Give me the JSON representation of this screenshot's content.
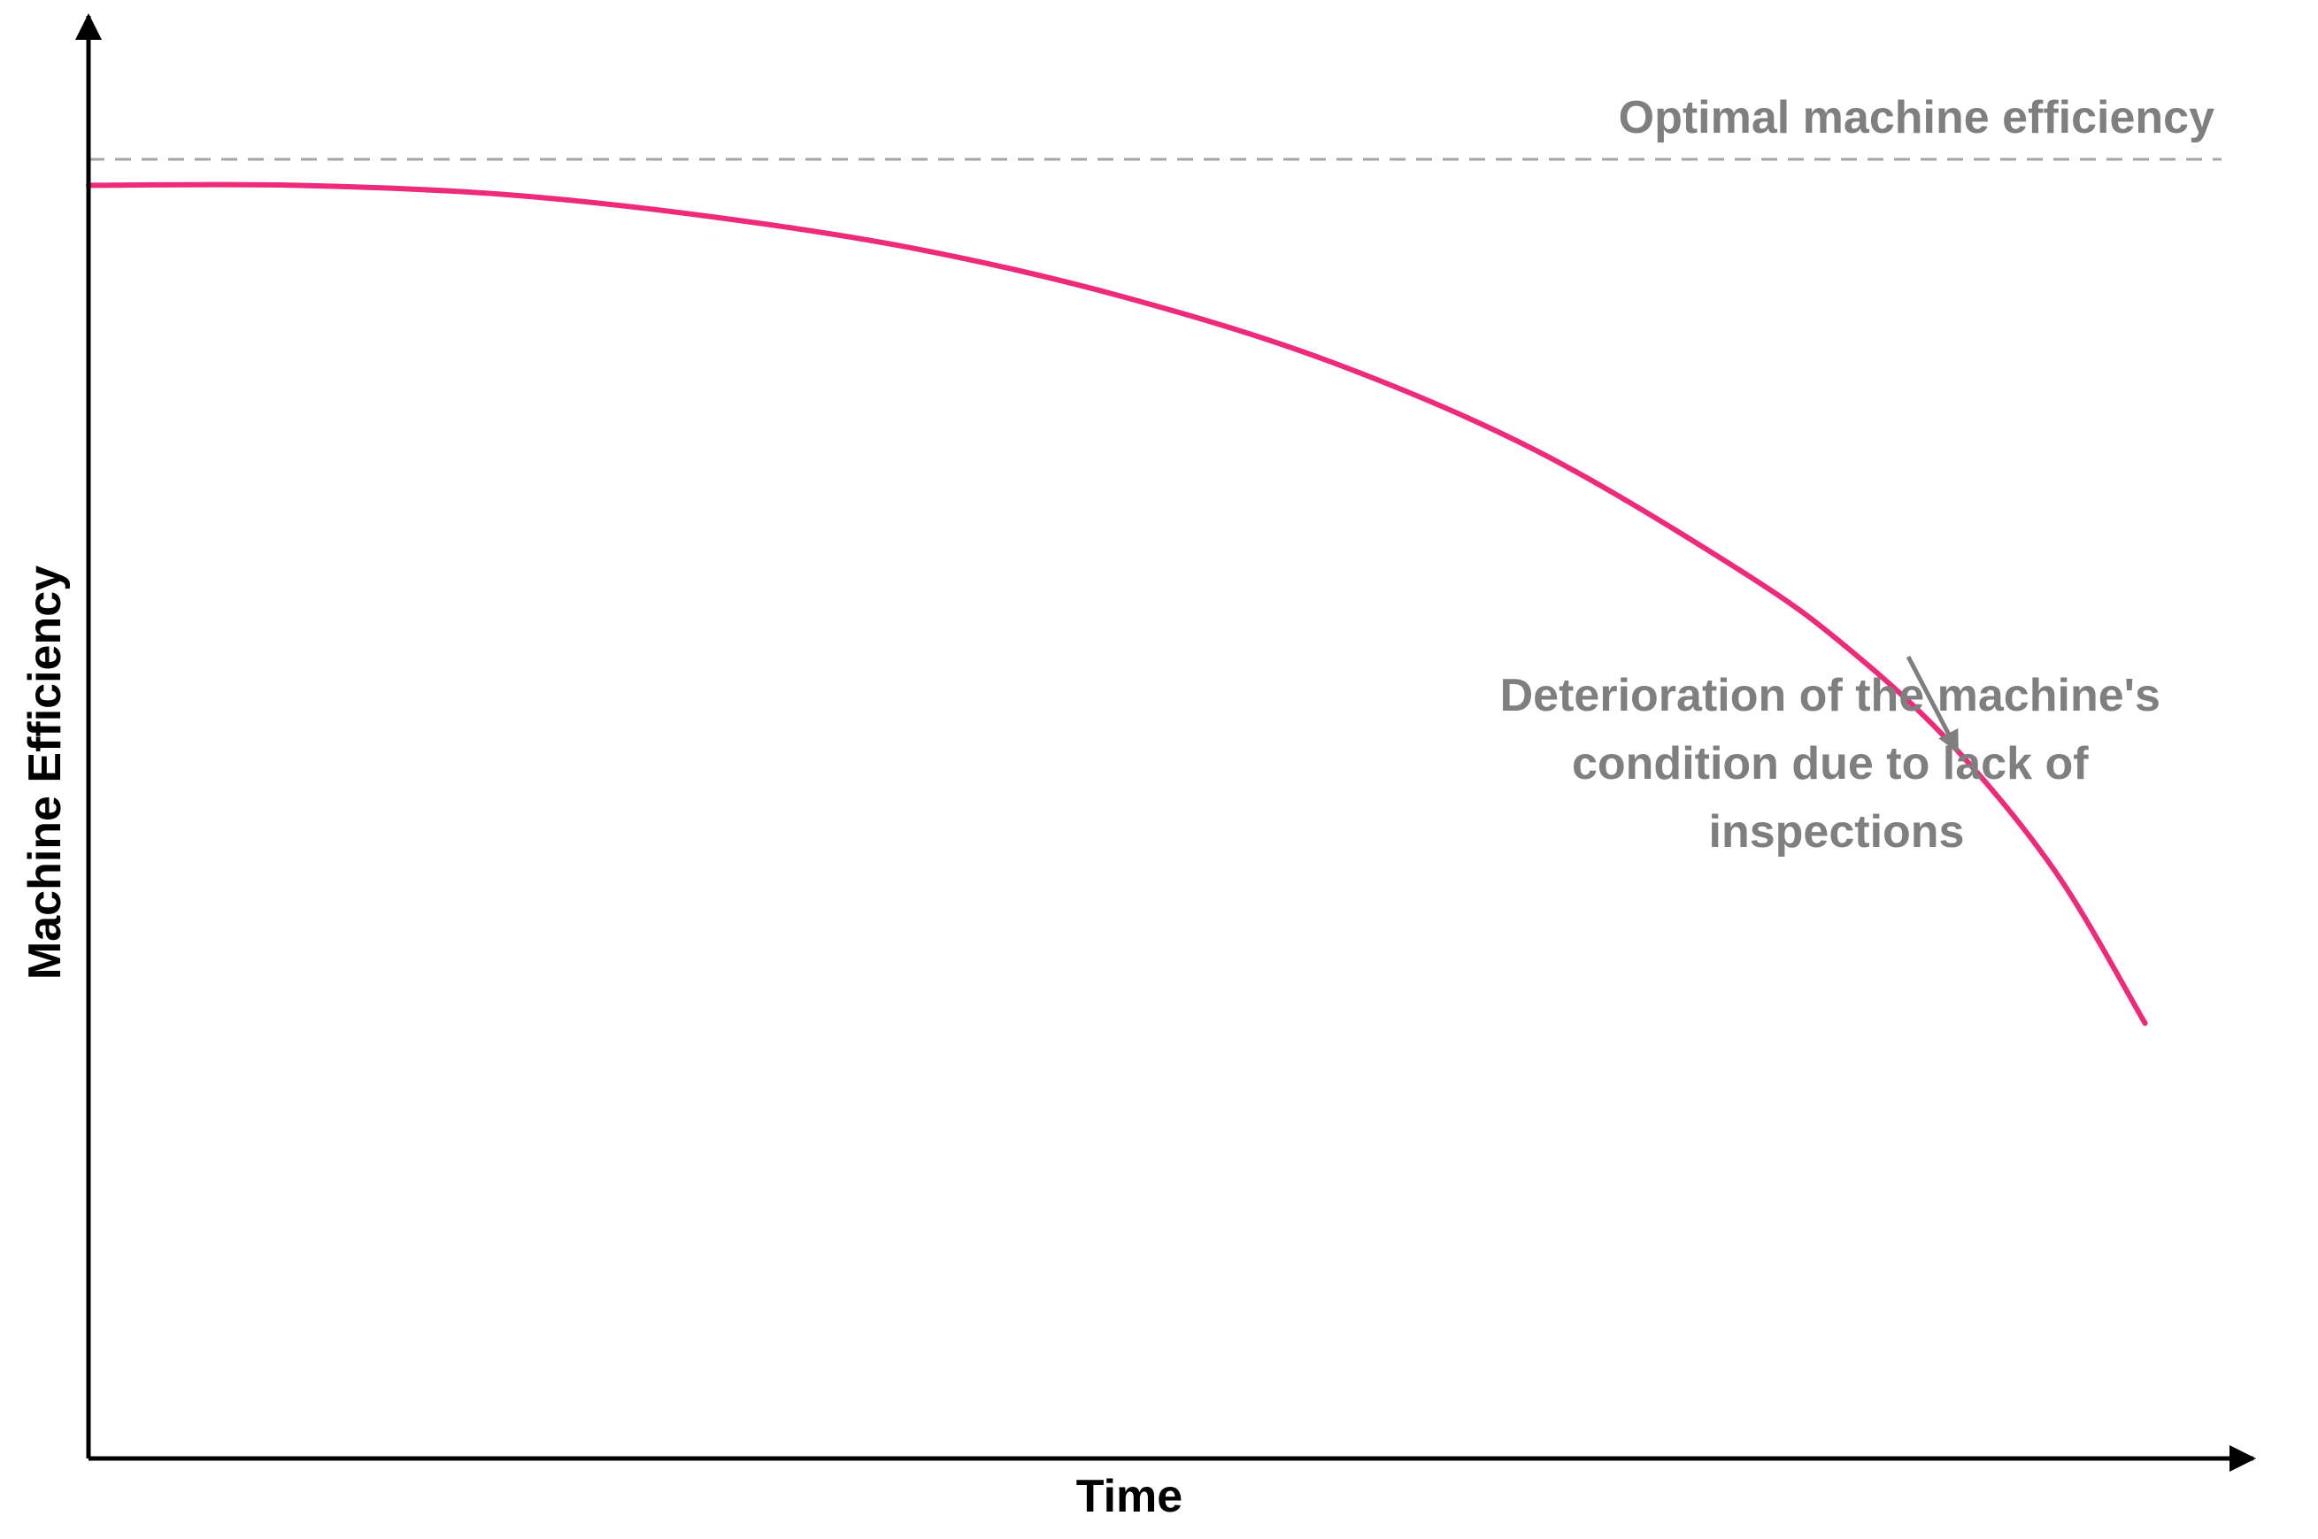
{
  "chart_data": {
    "type": "line",
    "title": "",
    "xlabel": "Time",
    "ylabel": "Machine Efficiency",
    "xlim": [
      0,
      100
    ],
    "ylim": [
      0,
      100
    ],
    "grid": false,
    "legend": "none",
    "series": [
      {
        "color": "#ee2a7b",
        "points": [
          [
            0,
            98
          ],
          [
            10,
            98
          ],
          [
            20,
            97.3
          ],
          [
            30,
            95.6
          ],
          [
            40,
            93.1
          ],
          [
            50,
            89.4
          ],
          [
            60,
            84.4
          ],
          [
            70,
            77.5
          ],
          [
            80,
            68.1
          ],
          [
            85,
            62.3
          ],
          [
            90,
            54.9
          ],
          [
            95,
            45.1
          ],
          [
            99.3,
            33.5
          ]
        ]
      }
    ],
    "reference_line": {
      "label": "Optimal machine efficiency",
      "y": 100,
      "style": "dashed",
      "color": "#a6a6a6"
    },
    "annotation": {
      "lines": [
        "Deterioration of the machine's",
        "condition due to lack of",
        "inspections"
      ],
      "points_to": [
        90.5,
        55
      ],
      "color": "#7f7f7f"
    },
    "colors": {
      "axis": "#000000",
      "label_gray": "#7f7f7f"
    }
  }
}
